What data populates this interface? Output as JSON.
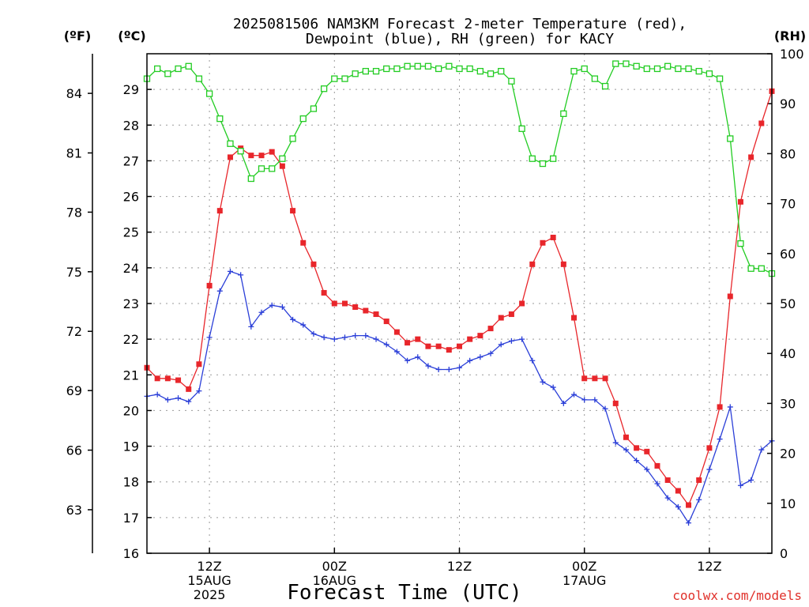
{
  "chart_data": {
    "type": "line",
    "title_line1": "2025081506 NAM3KM Forecast 2-meter Temperature (red),",
    "title_line2": "Dewpoint (blue), RH (green) for KACY",
    "left_outer_unit": "(ºF)",
    "left_inner_unit": "(ºC)",
    "right_unit": "(RH)",
    "xlabel": "Forecast Time (UTC)",
    "credit": "coolwx.com/models",
    "ylim_c": [
      16,
      30
    ],
    "ylim_rh": [
      0,
      100
    ],
    "yticks_c": [
      "16",
      "17",
      "18",
      "19",
      "20",
      "21",
      "22",
      "23",
      "24",
      "25",
      "26",
      "27",
      "28",
      "29"
    ],
    "yticks_f": [
      {
        "c": 17.22,
        "label": "63"
      },
      {
        "c": 18.89,
        "label": "66"
      },
      {
        "c": 20.56,
        "label": "69"
      },
      {
        "c": 22.22,
        "label": "72"
      },
      {
        "c": 23.89,
        "label": "75"
      },
      {
        "c": 25.56,
        "label": "78"
      },
      {
        "c": 27.22,
        "label": "81"
      },
      {
        "c": 28.89,
        "label": "84"
      }
    ],
    "yticks_rh": [
      "0",
      "10",
      "20",
      "30",
      "40",
      "50",
      "60",
      "70",
      "80",
      "90",
      "100"
    ],
    "x_start_hour": 6,
    "x_end_hour": 66,
    "xticks": [
      {
        "hour": 12,
        "lines": [
          "12Z",
          "15AUG",
          "2025"
        ]
      },
      {
        "hour": 24,
        "lines": [
          "00Z",
          "16AUG"
        ]
      },
      {
        "hour": 36,
        "lines": [
          "12Z"
        ]
      },
      {
        "hour": 48,
        "lines": [
          "00Z",
          "17AUG"
        ]
      },
      {
        "hour": 60,
        "lines": [
          "12Z"
        ]
      }
    ],
    "hours": [
      6,
      7,
      8,
      9,
      10,
      11,
      12,
      13,
      14,
      15,
      16,
      17,
      18,
      19,
      20,
      21,
      22,
      23,
      24,
      25,
      26,
      27,
      28,
      29,
      30,
      31,
      32,
      33,
      34,
      35,
      36,
      37,
      38,
      39,
      40,
      41,
      42,
      43,
      44,
      45,
      46,
      47,
      48,
      49,
      50,
      51,
      52,
      53,
      54,
      55,
      56,
      57,
      58,
      59,
      60,
      61,
      62,
      63,
      64,
      65,
      66
    ],
    "series": [
      {
        "name": "Temperature",
        "color": "#e8262b",
        "marker": "filled-square",
        "axis": "celsius",
        "values": [
          21.2,
          20.9,
          20.9,
          20.85,
          20.6,
          21.3,
          23.5,
          25.6,
          27.1,
          27.35,
          27.15,
          27.15,
          27.25,
          26.85,
          25.6,
          24.7,
          24.1,
          23.3,
          23.0,
          23.0,
          22.9,
          22.8,
          22.7,
          22.5,
          22.2,
          21.9,
          22.0,
          21.8,
          21.8,
          21.7,
          21.8,
          22.0,
          22.1,
          22.3,
          22.6,
          22.7,
          23.0,
          24.1,
          24.7,
          24.85,
          24.1,
          22.6,
          20.9,
          20.9,
          20.9,
          20.2,
          19.25,
          18.95,
          18.85,
          18.45,
          18.05,
          17.75,
          17.35,
          18.05,
          18.95,
          20.1,
          23.2,
          25.85,
          27.1,
          28.05,
          28.95
        ]
      },
      {
        "name": "Dewpoint",
        "color": "#2b3fd8",
        "marker": "plus",
        "axis": "celsius",
        "values": [
          20.4,
          20.45,
          20.3,
          20.35,
          20.25,
          20.55,
          22.05,
          23.35,
          23.9,
          23.8,
          22.35,
          22.75,
          22.95,
          22.9,
          22.55,
          22.4,
          22.15,
          22.05,
          22.0,
          22.05,
          22.1,
          22.1,
          22.0,
          21.85,
          21.65,
          21.4,
          21.5,
          21.25,
          21.15,
          21.15,
          21.2,
          21.4,
          21.5,
          21.6,
          21.85,
          21.95,
          22.0,
          21.4,
          20.8,
          20.65,
          20.2,
          20.45,
          20.3,
          20.3,
          20.05,
          19.1,
          18.9,
          18.6,
          18.35,
          17.95,
          17.55,
          17.3,
          16.85,
          17.5,
          18.35,
          19.2,
          20.1,
          17.9,
          18.05,
          18.9,
          19.15
        ]
      },
      {
        "name": "RH",
        "color": "#22cc22",
        "marker": "open-square",
        "axis": "rh",
        "values": [
          95,
          97,
          96,
          97,
          97.5,
          95,
          92,
          87,
          82,
          80.5,
          75,
          77,
          77,
          79,
          83,
          87,
          89,
          93,
          95,
          95,
          96,
          96.5,
          96.5,
          97,
          97,
          97.5,
          97.5,
          97.5,
          97,
          97.5,
          97,
          97,
          96.5,
          96,
          96.5,
          94.5,
          85,
          79,
          78,
          79,
          88,
          96.5,
          97,
          95,
          93.5,
          98,
          98,
          97.5,
          97,
          97,
          97.5,
          97,
          97,
          96.5,
          96,
          95,
          83,
          62,
          57,
          57,
          56
        ]
      }
    ]
  }
}
